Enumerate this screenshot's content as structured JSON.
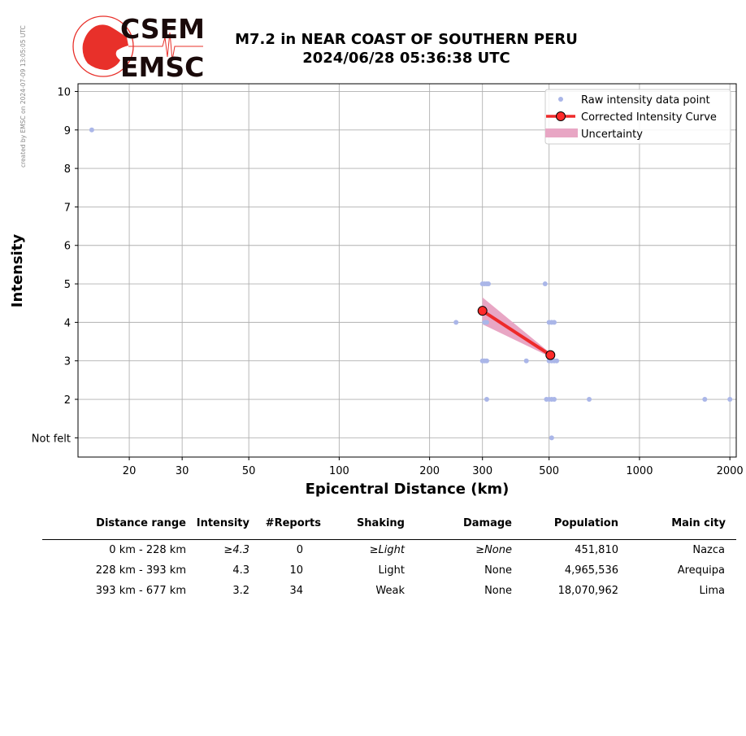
{
  "credit": "created by EMSC on 2024-07-09 13:05:05 UTC",
  "logo": {
    "line1": "CSEM",
    "line2": "EMSC",
    "color": "#e8302a"
  },
  "title": {
    "line1": "M7.2 in NEAR COAST OF SOUTHERN PERU",
    "line2": "2024/06/28 05:36:38 UTC"
  },
  "chart_data": {
    "type": "scatter",
    "xscale": "log",
    "xlim": [
      13.5,
      2100
    ],
    "ylim": [
      0.5,
      10.2
    ],
    "xlabel": "Epicentral Distance (km)",
    "ylabel": "Intensity",
    "xticks": [
      20,
      30,
      50,
      100,
      200,
      300,
      500,
      1000,
      2000
    ],
    "xtick_labels": [
      "20",
      "30",
      "50",
      "100",
      "200",
      "300",
      "500",
      "1000",
      "2000"
    ],
    "yticks": [
      1,
      2,
      3,
      4,
      5,
      6,
      7,
      8,
      9,
      10
    ],
    "ytick_labels": [
      "Not felt",
      "2",
      "3",
      "4",
      "5",
      "6",
      "7",
      "8",
      "9",
      "10"
    ],
    "grid": true,
    "legend": "top-right",
    "legend_entries": [
      "Raw intensity data point",
      "Corrected Intensity Curve",
      "Uncertainty"
    ],
    "colors": {
      "raw": "#aab6e8",
      "curve": "#ee2a2a",
      "marker": "#ff2a2a",
      "uncertainty": "#e8a6c4",
      "grid": "#b0b0b0"
    },
    "series": [
      {
        "name": "Raw intensity data point",
        "points": [
          [
            15,
            9
          ],
          [
            300,
            5
          ],
          [
            305,
            5
          ],
          [
            310,
            5
          ],
          [
            314,
            5
          ],
          [
            485,
            5
          ],
          [
            245,
            4
          ],
          [
            305,
            4
          ],
          [
            310,
            4
          ],
          [
            500,
            4
          ],
          [
            510,
            4
          ],
          [
            520,
            4
          ],
          [
            300,
            3
          ],
          [
            305,
            3
          ],
          [
            310,
            3
          ],
          [
            420,
            3
          ],
          [
            500,
            3
          ],
          [
            510,
            3
          ],
          [
            520,
            3
          ],
          [
            530,
            3
          ],
          [
            310,
            2
          ],
          [
            490,
            2
          ],
          [
            500,
            2
          ],
          [
            510,
            2
          ],
          [
            520,
            2
          ],
          [
            680,
            2
          ],
          [
            1650,
            2
          ],
          [
            2000,
            2
          ],
          [
            510,
            1
          ]
        ]
      },
      {
        "name": "Corrected Intensity Curve",
        "points": [
          [
            300,
            4.3
          ],
          [
            505,
            3.15
          ]
        ]
      },
      {
        "name": "Uncertainty",
        "upper": [
          [
            300,
            4.65
          ],
          [
            505,
            3.2
          ]
        ],
        "lower": [
          [
            300,
            3.95
          ],
          [
            505,
            3.1
          ]
        ]
      }
    ]
  },
  "table": {
    "headers": [
      "Distance range",
      "Intensity",
      "#Reports",
      "Shaking",
      "Damage",
      "Population",
      "Main city"
    ],
    "rows": [
      {
        "range": "0 km -  228 km",
        "intensity": "≥4.3",
        "reports": "0",
        "shaking": "≥Light",
        "damage": "≥None",
        "population": "451,810",
        "city": "Nazca"
      },
      {
        "range": "228 km -  393 km",
        "intensity": "4.3",
        "reports": "10",
        "shaking": "Light",
        "damage": "None",
        "population": "4,965,536",
        "city": "Arequipa"
      },
      {
        "range": "393 km -  677 km",
        "intensity": "3.2",
        "reports": "34",
        "shaking": "Weak",
        "damage": "None",
        "population": "18,070,962",
        "city": "Lima"
      }
    ]
  }
}
